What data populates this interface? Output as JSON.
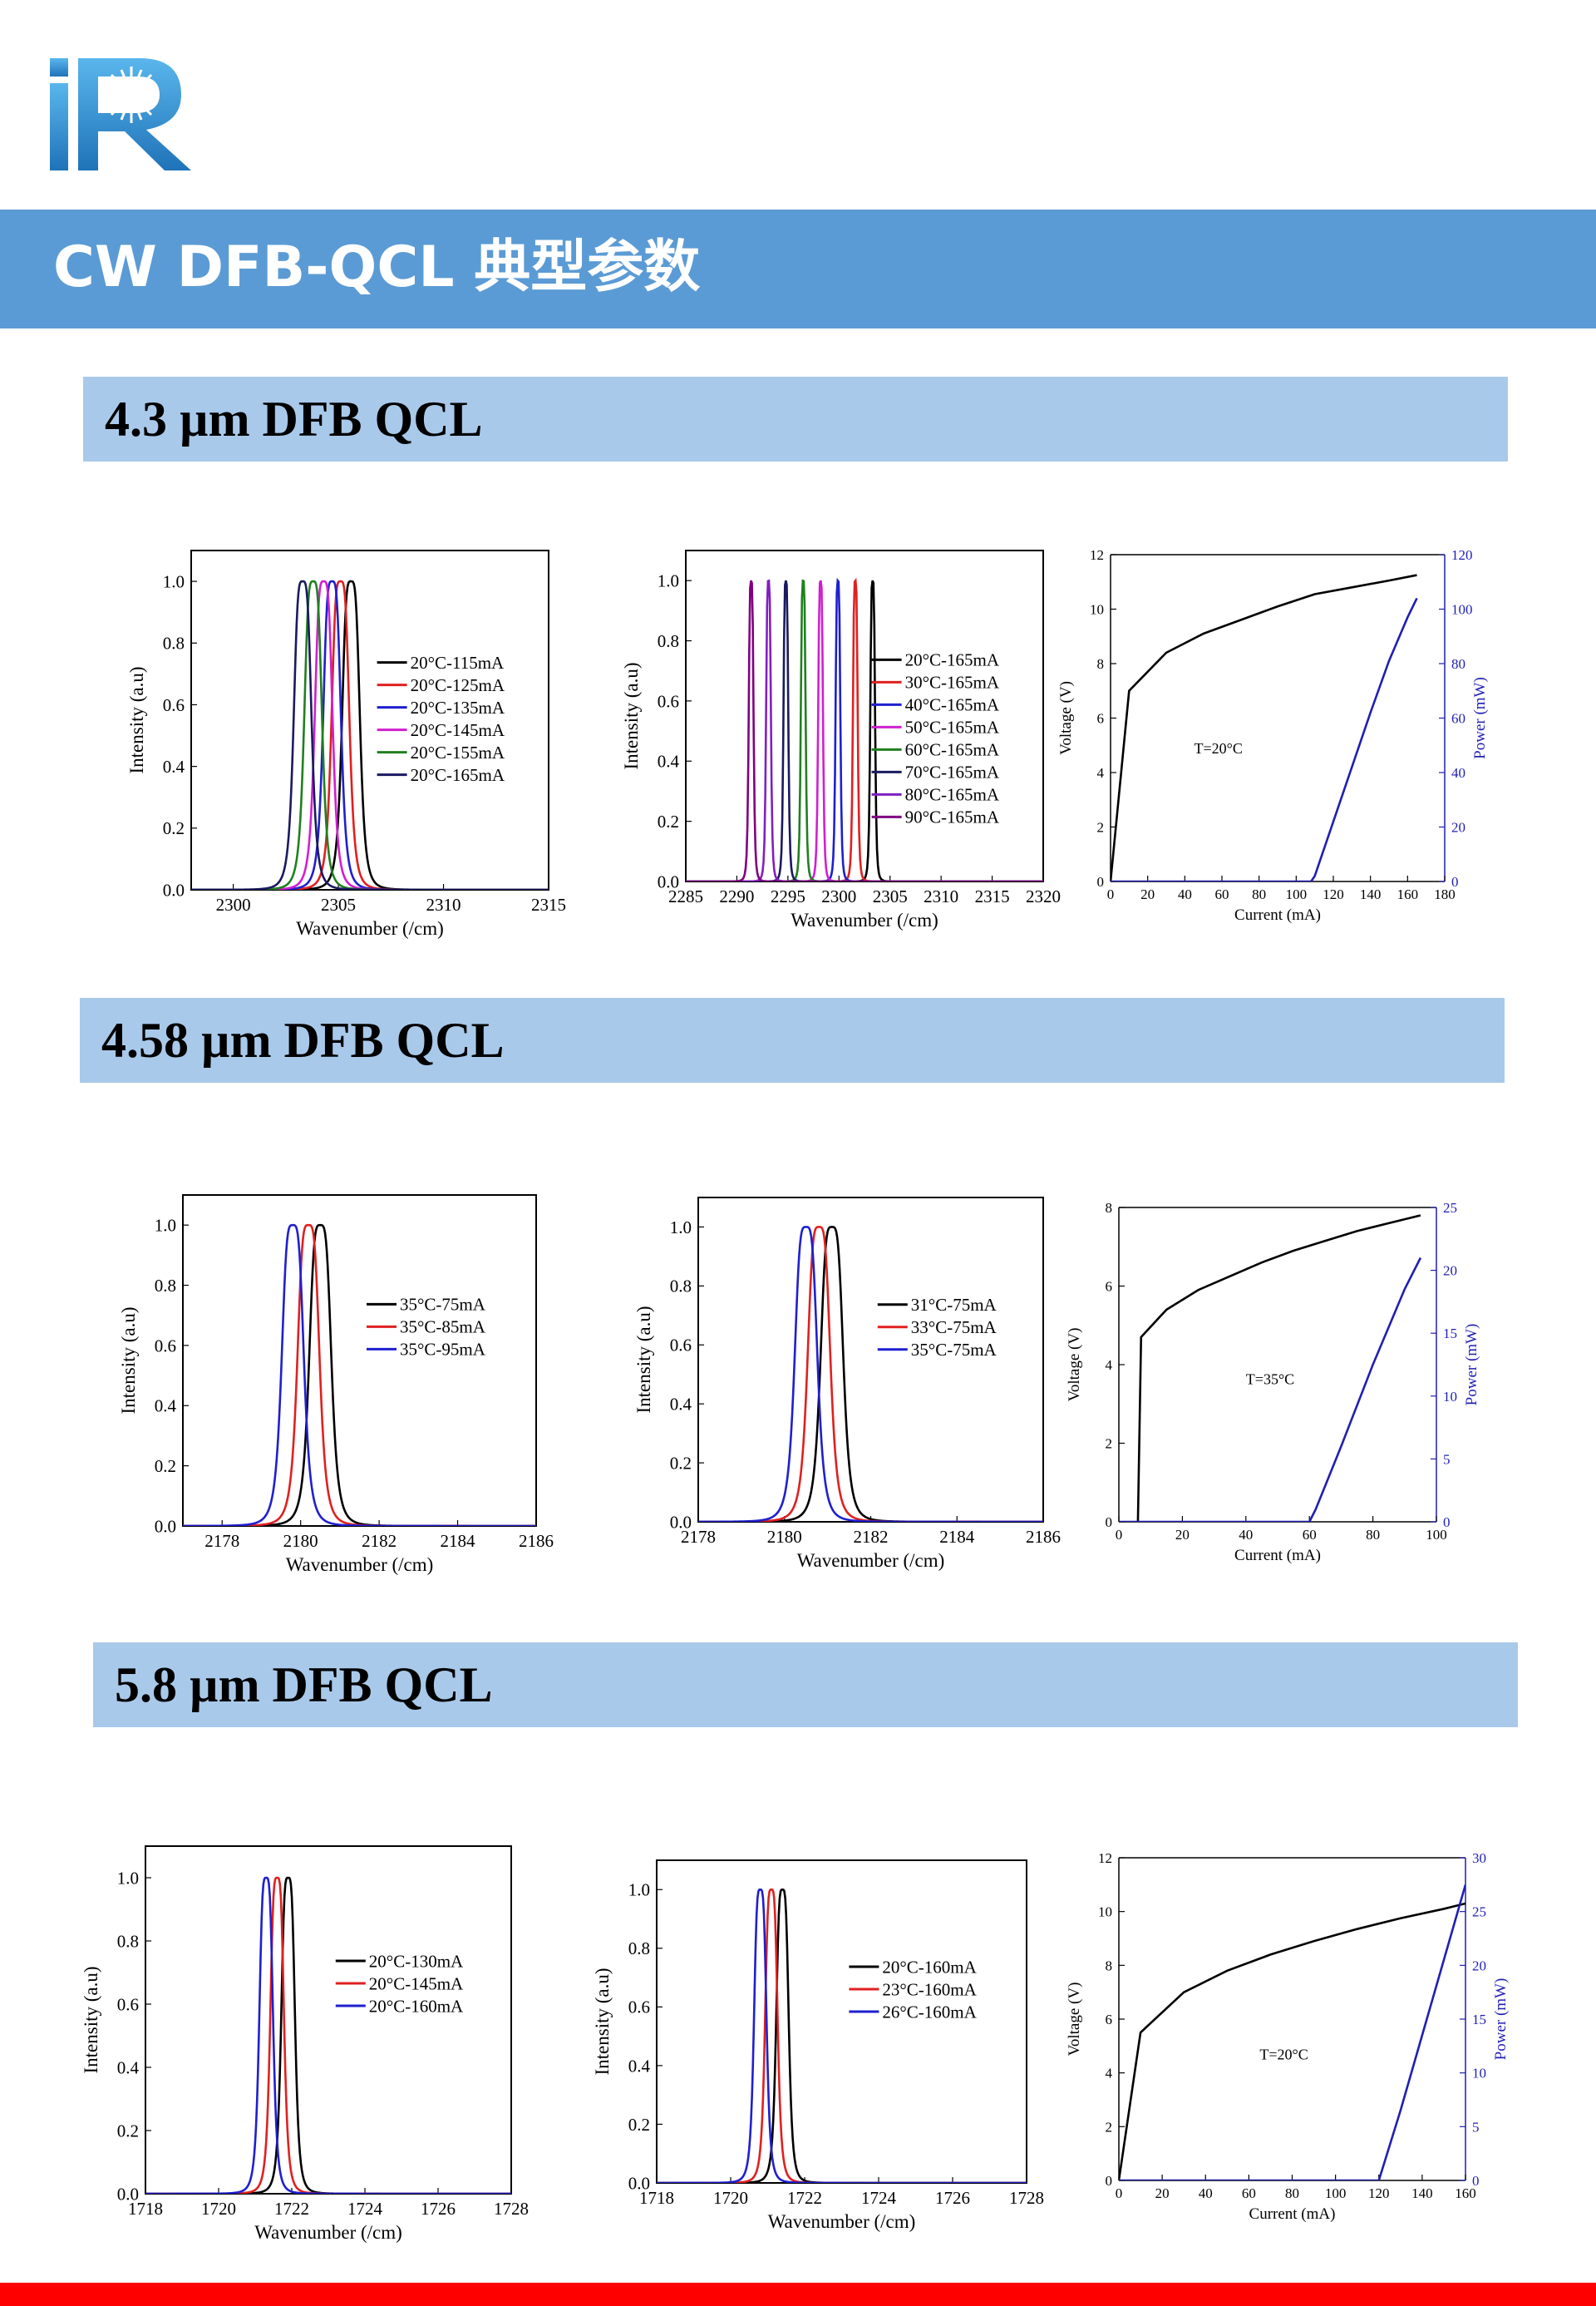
{
  "header": {
    "logo_icon": "ir-starburst-logo",
    "title": "CW DFB-QCL 典型参数"
  },
  "colors": {
    "title_bar": "#5b9bd5",
    "section_bar": "#a9c9ea",
    "bottom_bar": "#ff0000",
    "power_axis": "#1f1fb4"
  },
  "sections": [
    {
      "title": "4.3 µm DFB QCL"
    },
    {
      "title": "4.58 µm DFB QCL"
    },
    {
      "title": "5.8 µm DFB QCL"
    }
  ],
  "chart_data": [
    {
      "type": "line",
      "section": 0,
      "xlabel": "Wavenumber (/cm)",
      "ylabel": "Intensity (a.u)",
      "xlim": [
        2298,
        2315
      ],
      "ylim": [
        0,
        1.1
      ],
      "xticks": [
        2300,
        2305,
        2310,
        2315
      ],
      "yticks": [
        0.0,
        0.2,
        0.4,
        0.6,
        0.8,
        1.0
      ],
      "grid": false,
      "legend": "right",
      "peak_width": 0.45,
      "series": [
        {
          "name": "20°C-115mA",
          "color": "#000000",
          "peak": 2305.6
        },
        {
          "name": "20°C-125mA",
          "color": "#e02020",
          "peak": 2305.1
        },
        {
          "name": "20°C-135mA",
          "color": "#1f1fd0",
          "peak": 2304.7
        },
        {
          "name": "20°C-145mA",
          "color": "#d020d0",
          "peak": 2304.3
        },
        {
          "name": "20°C-155mA",
          "color": "#208020",
          "peak": 2303.8
        },
        {
          "name": "20°C-165mA",
          "color": "#1a1a60",
          "peak": 2303.3
        }
      ]
    },
    {
      "type": "line",
      "section": 0,
      "xlabel": "Wavenumber (/cm)",
      "ylabel": "Intensity (a.u)",
      "xlim": [
        2285,
        2320
      ],
      "ylim": [
        0,
        1.1
      ],
      "xticks": [
        2285,
        2290,
        2295,
        2300,
        2305,
        2310,
        2315,
        2320
      ],
      "yticks": [
        0.0,
        0.2,
        0.4,
        0.6,
        0.8,
        1.0
      ],
      "grid": false,
      "legend": "right",
      "peak_width": 0.25,
      "series": [
        {
          "name": "20°C-165mA",
          "color": "#000000",
          "peak": 2303.3
        },
        {
          "name": "30°C-165mA",
          "color": "#e02020",
          "peak": 2301.6
        },
        {
          "name": "40°C-165mA",
          "color": "#1f1fd0",
          "peak": 2299.9
        },
        {
          "name": "50°C-165mA",
          "color": "#d020d0",
          "peak": 2298.2
        },
        {
          "name": "60°C-165mA",
          "color": "#208020",
          "peak": 2296.5
        },
        {
          "name": "70°C-165mA",
          "color": "#1a1a60",
          "peak": 2294.8
        },
        {
          "name": "80°C-165mA",
          "color": "#8020c0",
          "peak": 2293.1
        },
        {
          "name": "90°C-165mA",
          "color": "#800080",
          "peak": 2291.4
        }
      ]
    },
    {
      "type": "line",
      "section": 0,
      "dual_axis": true,
      "xlabel": "Current (mA)",
      "ylabel": "Voltage (V)",
      "y2label": "Power (mW)",
      "xlim": [
        0,
        180
      ],
      "ylim": [
        0,
        12
      ],
      "y2lim": [
        0,
        120
      ],
      "xticks": [
        0,
        20,
        40,
        60,
        80,
        100,
        120,
        140,
        160,
        180
      ],
      "yticks": [
        0,
        2,
        4,
        6,
        8,
        10,
        12
      ],
      "y2ticks": [
        0,
        20,
        40,
        60,
        80,
        100,
        120
      ],
      "annotation": "T=20°C",
      "annotation_pos": [
        45,
        4.7
      ],
      "grid": false,
      "series": [
        {
          "name": "Voltage",
          "axis": "left",
          "color": "#000000",
          "x": [
            0,
            10,
            30,
            50,
            70,
            90,
            110,
            130,
            150,
            165
          ],
          "y": [
            0,
            7.0,
            8.4,
            9.1,
            9.6,
            10.1,
            10.55,
            10.8,
            11.05,
            11.25
          ]
        },
        {
          "name": "Power",
          "axis": "right",
          "color": "#1f1fb4",
          "x": [
            0,
            108,
            110,
            120,
            130,
            140,
            150,
            160,
            165
          ],
          "y": [
            0,
            0,
            2,
            22,
            42,
            62,
            81,
            97,
            104
          ]
        }
      ]
    },
    {
      "type": "line",
      "section": 1,
      "xlabel": "Wavenumber (/cm)",
      "ylabel": "Intensity (a.u)",
      "xlim": [
        2177,
        2186
      ],
      "ylim": [
        0,
        1.1
      ],
      "xticks": [
        2178,
        2180,
        2182,
        2184,
        2186
      ],
      "yticks": [
        0.0,
        0.2,
        0.4,
        0.6,
        0.8,
        1.0
      ],
      "grid": false,
      "legend": "right",
      "peak_width": 0.3,
      "series": [
        {
          "name": "35°C-75mA",
          "color": "#000000",
          "peak": 2180.5
        },
        {
          "name": "35°C-85mA",
          "color": "#e02020",
          "peak": 2180.2
        },
        {
          "name": "35°C-95mA",
          "color": "#1f1fd0",
          "peak": 2179.8
        }
      ]
    },
    {
      "type": "line",
      "section": 1,
      "xlabel": "Wavenumber (/cm)",
      "ylabel": "Intensity (a.u)",
      "xlim": [
        2178,
        2186
      ],
      "ylim": [
        0,
        1.1
      ],
      "xticks": [
        2178,
        2180,
        2182,
        2184,
        2186
      ],
      "yticks": [
        0.0,
        0.2,
        0.4,
        0.6,
        0.8,
        1.0
      ],
      "grid": false,
      "legend": "right",
      "peak_width": 0.28,
      "series": [
        {
          "name": "31°C-75mA",
          "color": "#000000",
          "peak": 2181.1
        },
        {
          "name": "33°C-75mA",
          "color": "#e02020",
          "peak": 2180.8
        },
        {
          "name": "35°C-75mA",
          "color": "#1f1fd0",
          "peak": 2180.5
        }
      ]
    },
    {
      "type": "line",
      "section": 1,
      "dual_axis": true,
      "xlabel": "Current (mA)",
      "ylabel": "Voltage (V)",
      "y2label": "Power (mW)",
      "xlim": [
        0,
        100
      ],
      "ylim": [
        0,
        8
      ],
      "y2lim": [
        0,
        25
      ],
      "xticks": [
        0,
        20,
        40,
        60,
        80,
        100
      ],
      "yticks": [
        0,
        2,
        4,
        6,
        8
      ],
      "y2ticks": [
        0,
        5,
        10,
        15,
        20,
        25
      ],
      "annotation": "T=35°C",
      "annotation_pos": [
        40,
        3.5
      ],
      "grid": false,
      "series": [
        {
          "name": "Voltage",
          "axis": "left",
          "color": "#000000",
          "x": [
            6,
            7,
            15,
            25,
            35,
            45,
            55,
            65,
            75,
            85,
            95
          ],
          "y": [
            0,
            4.7,
            5.4,
            5.9,
            6.25,
            6.6,
            6.9,
            7.15,
            7.4,
            7.6,
            7.8
          ]
        },
        {
          "name": "Power",
          "axis": "right",
          "color": "#1f1fb4",
          "x": [
            0,
            60,
            62,
            70,
            80,
            90,
            95
          ],
          "y": [
            0,
            0,
            1,
            6,
            12.5,
            18.5,
            21
          ]
        }
      ]
    },
    {
      "type": "line",
      "section": 2,
      "xlabel": "Wavenumber (/cm)",
      "ylabel": "Intensity (a.u)",
      "xlim": [
        1718,
        1728
      ],
      "ylim": [
        0,
        1.1
      ],
      "xticks": [
        1718,
        1720,
        1722,
        1724,
        1726,
        1728
      ],
      "yticks": [
        0.0,
        0.2,
        0.4,
        0.6,
        0.8,
        1.0
      ],
      "grid": false,
      "legend": "right",
      "peak_width": 0.2,
      "series": [
        {
          "name": "20°C-130mA",
          "color": "#000000",
          "peak": 1721.9
        },
        {
          "name": "20°C-145mA",
          "color": "#e02020",
          "peak": 1721.6
        },
        {
          "name": "20°C-160mA",
          "color": "#1f1fd0",
          "peak": 1721.3
        }
      ]
    },
    {
      "type": "line",
      "section": 2,
      "xlabel": "Wavenumber (/cm)",
      "ylabel": "Intensity (a.u)",
      "xlim": [
        1718,
        1728
      ],
      "ylim": [
        0,
        1.1
      ],
      "xticks": [
        1718,
        1720,
        1722,
        1724,
        1726,
        1728
      ],
      "yticks": [
        0.0,
        0.2,
        0.4,
        0.6,
        0.8,
        1.0
      ],
      "grid": false,
      "legend": "right",
      "peak_width": 0.18,
      "series": [
        {
          "name": "20°C-160mA",
          "color": "#000000",
          "peak": 1721.4
        },
        {
          "name": "23°C-160mA",
          "color": "#e02020",
          "peak": 1721.1
        },
        {
          "name": "26°C-160mA",
          "color": "#1f1fd0",
          "peak": 1720.8
        }
      ]
    },
    {
      "type": "line",
      "section": 2,
      "dual_axis": true,
      "xlabel": "Current (mA)",
      "ylabel": "Voltage (V)",
      "y2label": "Power (mW)",
      "xlim": [
        0,
        160
      ],
      "ylim": [
        0,
        12
      ],
      "y2lim": [
        0,
        30
      ],
      "xticks": [
        0,
        20,
        40,
        60,
        80,
        100,
        120,
        140,
        160
      ],
      "yticks": [
        0,
        2,
        4,
        6,
        8,
        10,
        12
      ],
      "y2ticks": [
        0,
        5,
        10,
        15,
        20,
        25,
        30
      ],
      "annotation": "T=20°C",
      "annotation_pos": [
        65,
        4.5
      ],
      "grid": false,
      "series": [
        {
          "name": "Voltage",
          "axis": "left",
          "color": "#000000",
          "x": [
            0,
            10,
            30,
            50,
            70,
            90,
            110,
            130,
            150,
            160
          ],
          "y": [
            0,
            5.5,
            7.0,
            7.8,
            8.4,
            8.9,
            9.35,
            9.75,
            10.1,
            10.3
          ]
        },
        {
          "name": "Power",
          "axis": "right",
          "color": "#1f1fb4",
          "x": [
            0,
            120,
            130,
            140,
            150,
            160
          ],
          "y": [
            0,
            0,
            6.5,
            13.5,
            20.5,
            27.5
          ]
        }
      ]
    }
  ]
}
